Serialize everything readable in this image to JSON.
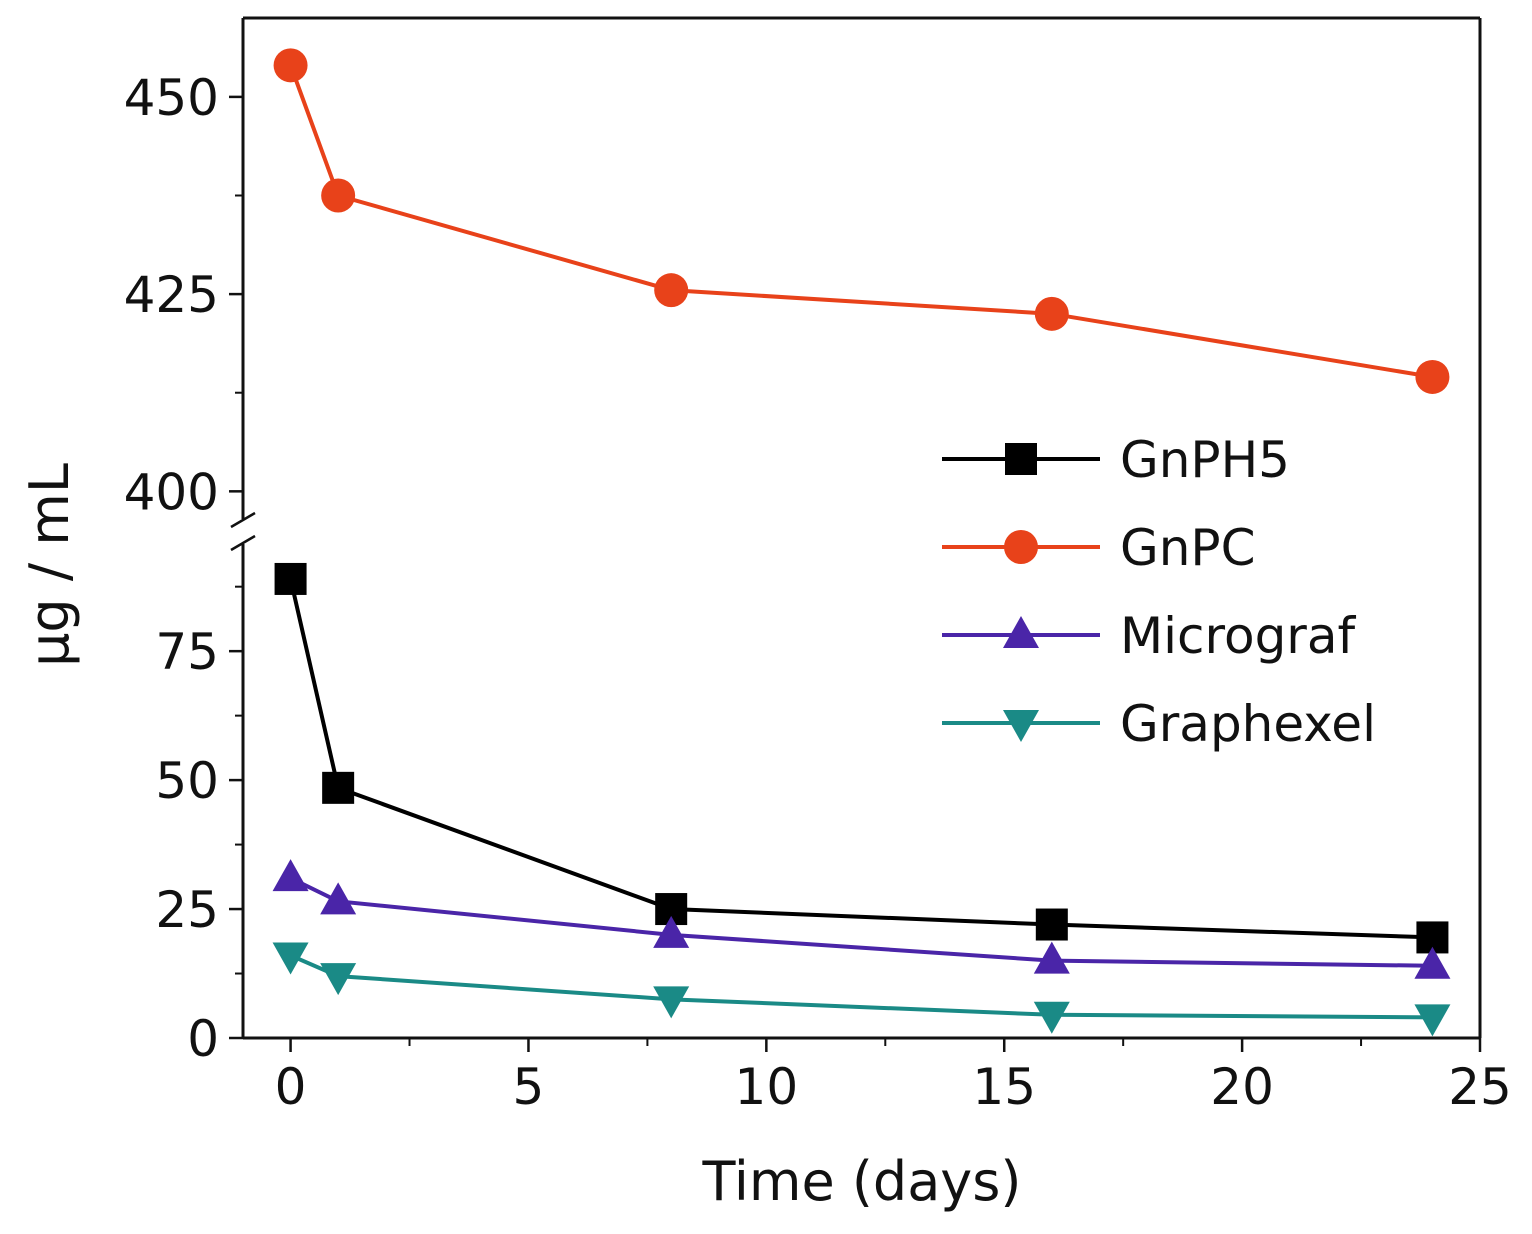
{
  "chart_data": {
    "type": "line",
    "title": "",
    "xlabel": "Time (days)",
    "ylabel": "μg / mL",
    "xlim": [
      -1,
      25
    ],
    "ylim_lower": [
      0,
      95
    ],
    "ylim_upper": [
      397,
      460
    ],
    "axis_break": true,
    "grid": false,
    "legend_position": "center-right",
    "x_ticks": [
      0,
      5,
      10,
      15,
      20,
      25
    ],
    "y_ticks_lower": [
      0,
      25,
      50,
      75
    ],
    "y_ticks_upper": [
      400,
      425,
      450
    ],
    "x": [
      0,
      1,
      8,
      16,
      24
    ],
    "series": [
      {
        "name": "GnPH5",
        "color": "#000000",
        "marker": "square",
        "values": [
          89,
          48.5,
          25,
          22,
          19.5
        ]
      },
      {
        "name": "GnPC",
        "color": "#e8421a",
        "marker": "circle",
        "values": [
          454,
          437.5,
          425.5,
          422.5,
          414.5
        ]
      },
      {
        "name": "Micrograf",
        "color": "#4a25a8",
        "marker": "triangle-up",
        "values": [
          31,
          26.5,
          20,
          15,
          14
        ]
      },
      {
        "name": "Graphexel",
        "color": "#1a8a86",
        "marker": "triangle-down",
        "values": [
          16,
          12,
          7.5,
          4.5,
          4
        ]
      }
    ]
  }
}
